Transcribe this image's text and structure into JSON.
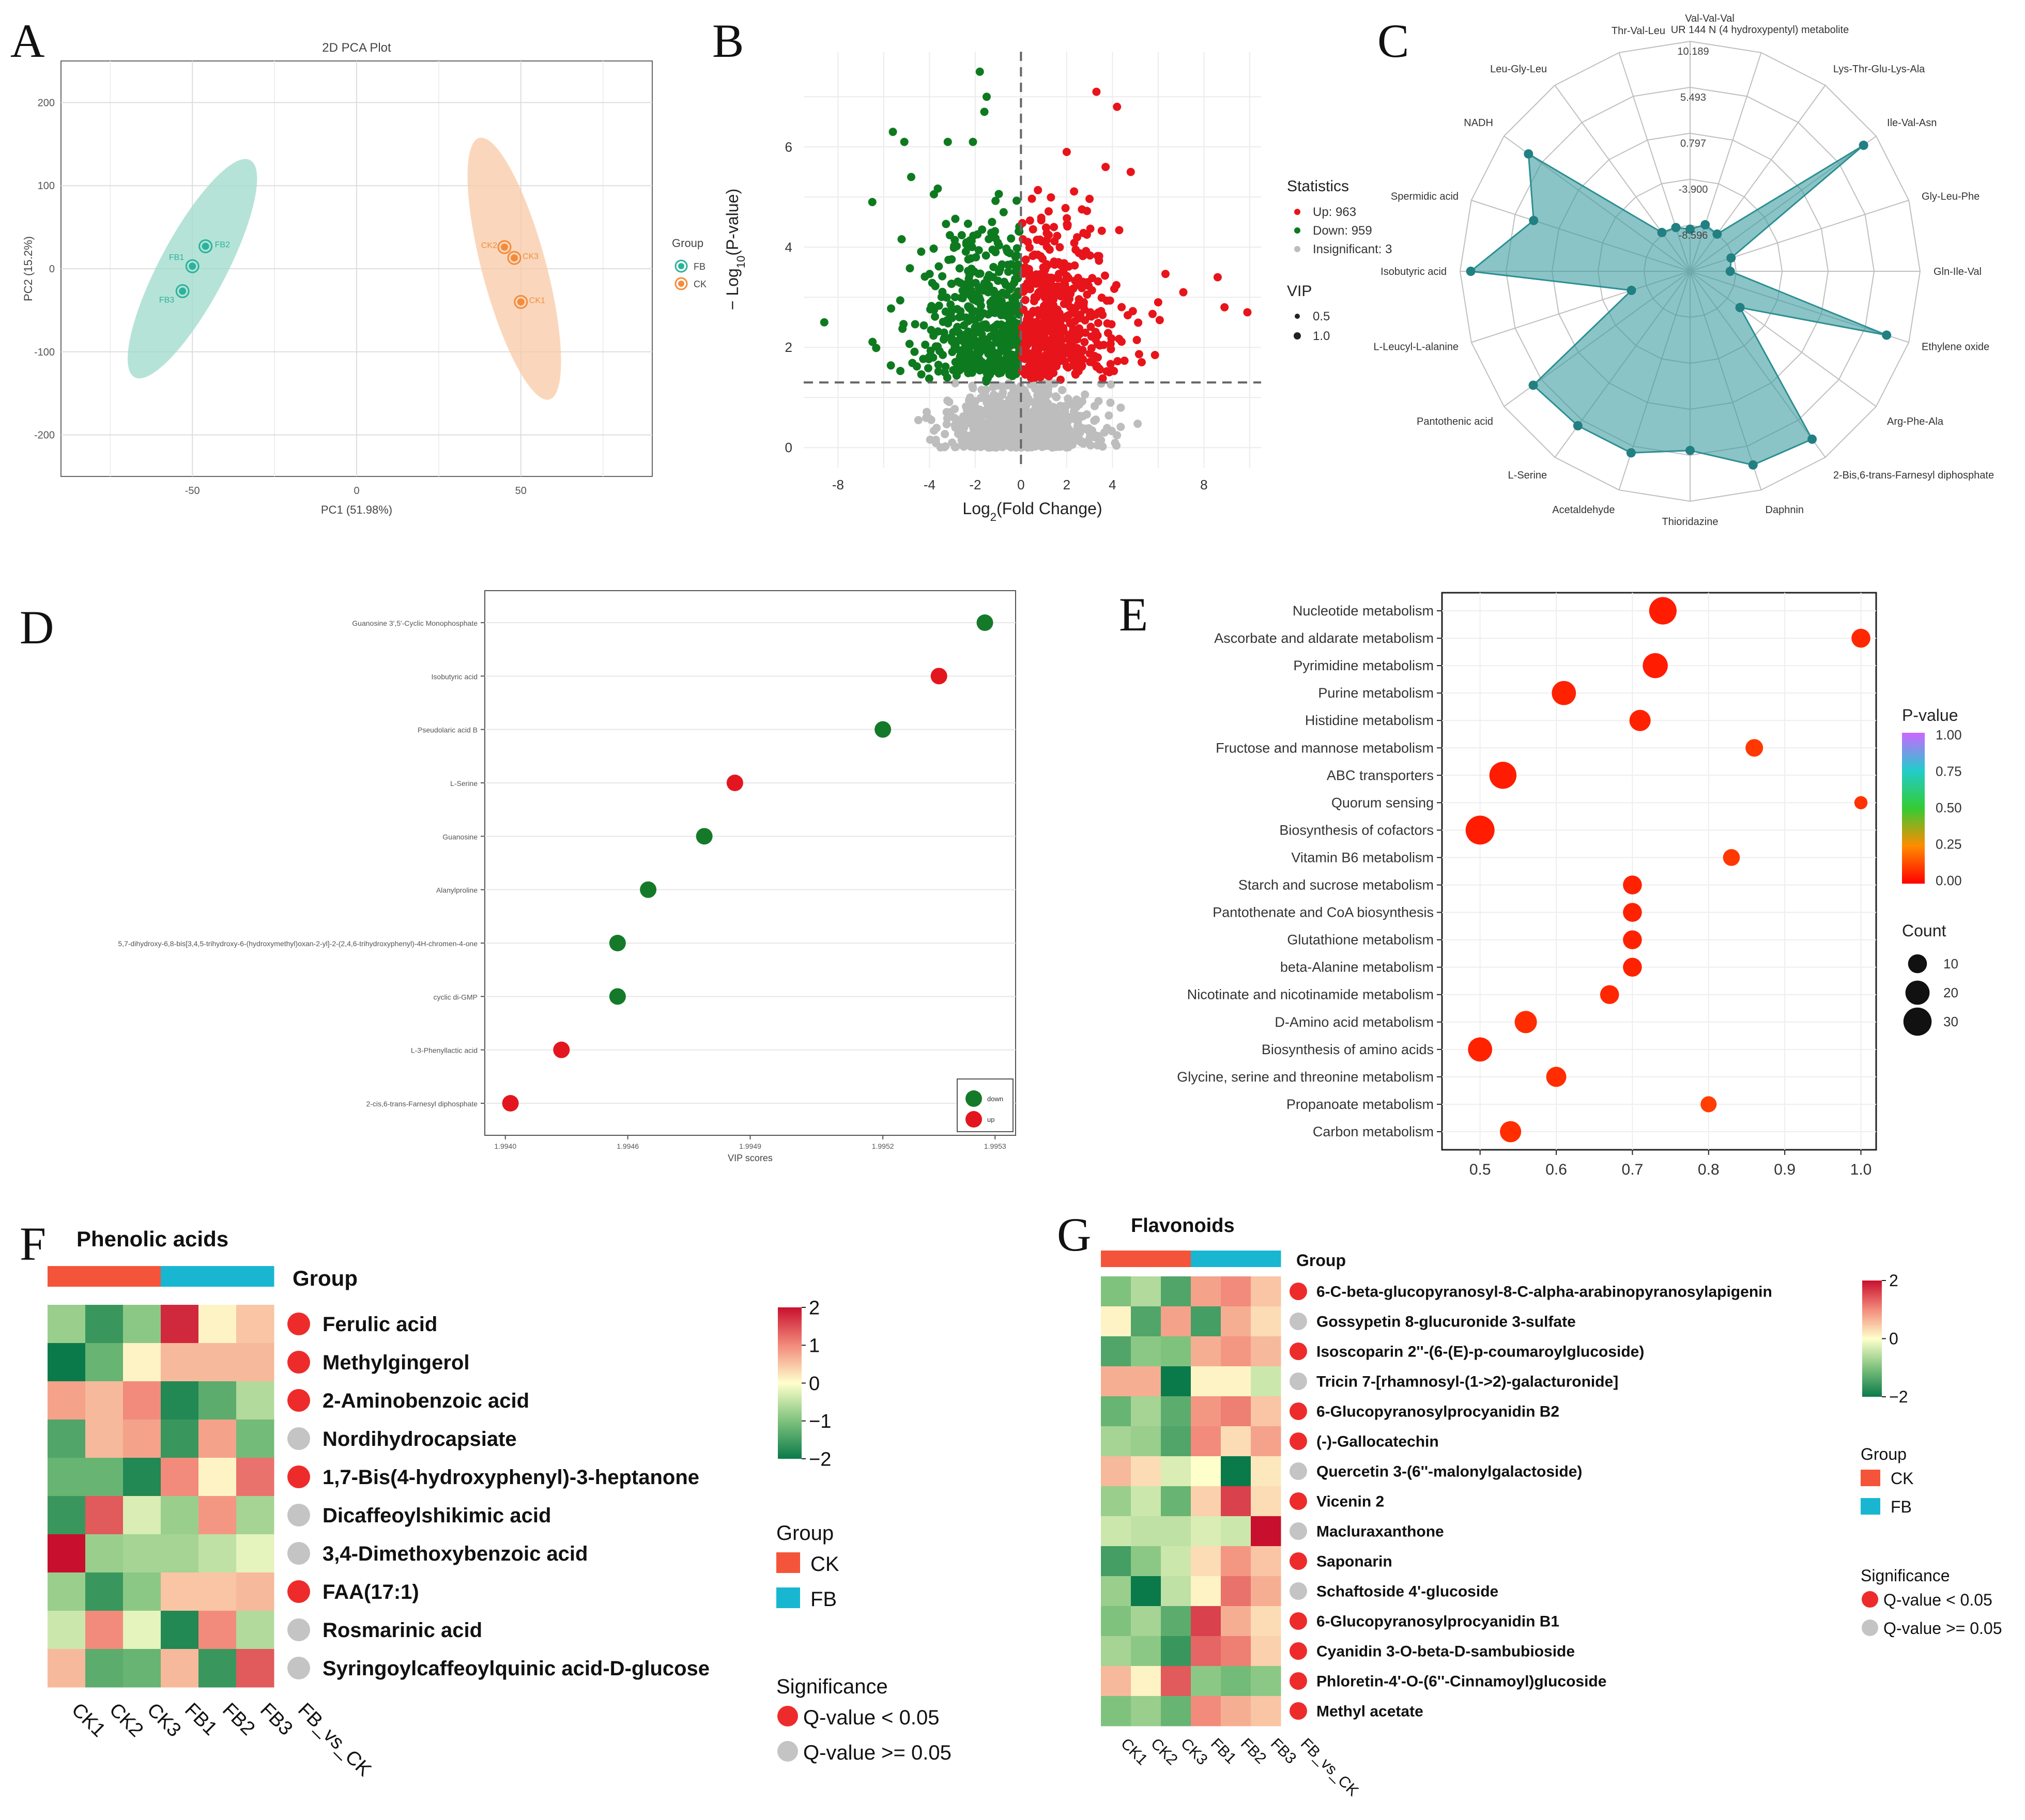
{
  "panel_labels": [
    "A",
    "B",
    "C",
    "D",
    "E",
    "F",
    "G"
  ],
  "chart_data": [
    {
      "id": "A",
      "type": "scatter",
      "title": "2D PCA Plot",
      "xlabel": "PC1 (51.98%)",
      "ylabel": "PC2 (15.2%)",
      "xlim": [
        -90,
        90
      ],
      "ylim": [
        -250,
        250
      ],
      "xticks": [
        "-50",
        "0",
        "50"
      ],
      "yticks": [
        "200",
        "100",
        "0",
        "-100",
        "-200"
      ],
      "legend_title": "Group",
      "legend_position": "right",
      "groups": [
        {
          "name": "FB",
          "color": "#2BB39B",
          "ellipse_color": "#9ED9CB",
          "points": [
            {
              "label": "FB2",
              "x": -46,
              "y": 27
            },
            {
              "label": "FB1",
              "x": -50,
              "y": 3
            },
            {
              "label": "FB3",
              "x": -53,
              "y": -27
            }
          ]
        },
        {
          "name": "CK",
          "color": "#F28C3C",
          "ellipse_color": "#F8C9A6",
          "points": [
            {
              "label": "CK2",
              "x": 45,
              "y": 26
            },
            {
              "label": "CK3",
              "x": 48,
              "y": 13
            },
            {
              "label": "CK1",
              "x": 50,
              "y": -40
            }
          ]
        }
      ]
    },
    {
      "id": "B",
      "type": "scatter",
      "xlabel_main": "Log",
      "xlabel_sub": "2",
      "xlabel_rest": "(Fold Change)",
      "ylabel_main": "− Log",
      "ylabel_sub": "10",
      "ylabel_rest": "(P-value)",
      "xlim": [
        -9.5,
        10.5
      ],
      "ylim": [
        -0.4,
        7.9
      ],
      "xticks": [
        "-8",
        "-4",
        "-2",
        "0",
        "2",
        "4",
        "8"
      ],
      "yticks": [
        "0",
        "2",
        "4",
        "6"
      ],
      "threshold_y": 1.3,
      "legend_title": "Statistics",
      "legend_items": [
        {
          "label": "Up: 963",
          "color": "#E8141B"
        },
        {
          "label": "Down: 959",
          "color": "#0E7A1F"
        },
        {
          "label": "Insignificant: 3",
          "color": "#BDBDBD"
        }
      ],
      "vip_title": "VIP",
      "vip_items": [
        "0.5",
        "1.0"
      ],
      "up_count": 963,
      "down_count": 959
    },
    {
      "id": "C",
      "type": "radar",
      "ring_labels": [
        "10.189",
        "5.493",
        "0.797",
        "-3.900",
        "-8.596"
      ],
      "axes": [
        "Val-Val-Val",
        "UR 144 N (4 hydroxypentyl) metabolite",
        "Lys-Thr-Glu-Lys-Ala",
        "Ile-Val-Asn",
        "Gly-Leu-Phe",
        "Gln-Ile-Val",
        "Ethylene oxide",
        "Arg-Phe-Ala",
        "2-Bis,6-trans-Farnesyl diphosphate",
        "Daphnin",
        "Thioridazine",
        "Acetaldehyde",
        "L-Serine",
        "Pantothenic acid",
        "L-Leucyl-L-alanine",
        "Isobutyric acid",
        "Spermidic acid",
        "NADH",
        "Leu-Gly-Leu",
        "Thr-Val-Leu"
      ],
      "values": [
        -9.0,
        -8.3,
        -8.6,
        8.6,
        -8.9,
        -9.2,
        7.8,
        -7.0,
        7.9,
        7.5,
        5.0,
        6.2,
        6.2,
        6.5,
        -7.0,
        9.1,
        3.5,
        7.1,
        -8.4,
        -8.6
      ],
      "rmin": -13.3,
      "rmax": 10.189,
      "color": "#2C8F92",
      "fill": "#3E9DA0"
    },
    {
      "id": "D",
      "type": "scatter",
      "xlabel": "VIP scores",
      "xticks": [
        "1.9940",
        "1.9946",
        "1.9949",
        "1.9952",
        "1.9953"
      ],
      "categories": [
        "Guanosine 3',5'-Cyclic Monophosphate",
        "Isobutyric acid",
        "Pseudolaric acid B",
        "L-Serine",
        "Guanosine",
        "Alanylproline",
        "5,7-dihydroxy-6,8-bis[3,4,5-trihydroxy-6-(hydroxymethyl)oxan-2-yl]-2-(2,4,6-trihydroxyphenyl)-4H-chromen-4-one",
        "cyclic di-GMP",
        "L-3-Phenyllactic acid",
        "2-cis,6-trans-Farnesyl diphosphate"
      ],
      "values": [
        0.96,
        0.87,
        0.76,
        0.47,
        0.41,
        0.3,
        0.24,
        0.24,
        0.13,
        0.03
      ],
      "directions": [
        "down",
        "up",
        "down",
        "up",
        "down",
        "down",
        "down",
        "down",
        "up",
        "up"
      ],
      "legend_items": [
        {
          "label": "down",
          "color": "#147A2A"
        },
        {
          "label": "up",
          "color": "#E3161F"
        }
      ],
      "legend_position": "bottom-right"
    },
    {
      "id": "E",
      "type": "scatter",
      "xlim": [
        0.45,
        1.02
      ],
      "xticks": [
        0.5,
        0.6,
        0.7,
        0.8,
        0.9,
        1.0
      ],
      "xtick_labels": [
        "0.5",
        "0.6",
        "0.7",
        "0.8",
        "0.9",
        "1.0"
      ],
      "categories": [
        "Nucleotide metabolism",
        "Ascorbate and aldarate metabolism",
        "Pyrimidine metabolism",
        "Purine metabolism",
        "Histidine metabolism",
        "Fructose and mannose metabolism",
        "ABC transporters",
        "Quorum sensing",
        "Biosynthesis of cofactors",
        "Vitamin B6 metabolism",
        "Starch and sucrose metabolism",
        "Pantothenate and CoA biosynthesis",
        "Glutathione metabolism",
        "beta-Alanine metabolism",
        "Nicotinate and nicotinamide metabolism",
        "D-Amino acid metabolism",
        "Biosynthesis of amino acids",
        "Glycine, serine and threonine metabolism",
        "Propanoate metabolism",
        "Carbon metabolism"
      ],
      "x": [
        0.74,
        1.0,
        0.73,
        0.61,
        0.71,
        0.86,
        0.53,
        1.0,
        0.5,
        0.83,
        0.7,
        0.7,
        0.7,
        0.7,
        0.67,
        0.56,
        0.5,
        0.6,
        0.8,
        0.54
      ],
      "count": [
        28,
        10,
        22,
        20,
        14,
        8,
        27,
        3,
        32,
        7,
        10,
        10,
        10,
        10,
        10,
        16,
        20,
        12,
        6,
        14
      ],
      "pvalue": [
        0.05,
        0.07,
        0.05,
        0.06,
        0.06,
        0.1,
        0.05,
        0.09,
        0.05,
        0.1,
        0.06,
        0.06,
        0.06,
        0.06,
        0.07,
        0.08,
        0.06,
        0.08,
        0.11,
        0.08
      ],
      "legend_pvalue_title": "P-value",
      "pvalue_ticks": [
        "1.00",
        "0.75",
        "0.50",
        "0.25",
        "0.00"
      ],
      "legend_count_title": "Count",
      "count_ticks": [
        "10",
        "20",
        "30"
      ]
    },
    {
      "id": "F",
      "type": "heatmap",
      "title": "Phenolic acids",
      "group_label": "Group",
      "columns": [
        "CK1",
        "CK2",
        "CK3",
        "FB1",
        "FB2",
        "FB3",
        "FB_vs_CK"
      ],
      "rows": [
        "Ferulic acid",
        "Methylgingerol",
        "2-Aminobenzoic acid",
        "Nordihydrocapsiate",
        "1,7-Bis(4-hydroxyphenyl)-3-heptanone",
        "Dicaffeoylshikimic acid",
        "3,4-Dimethoxybenzoic acid",
        "FAA(17:1)",
        "Rosmarinic acid",
        "Syringoylcaffeoylquinic acid-D-glucose"
      ],
      "values": [
        [
          -0.8,
          -1.6,
          -0.9,
          1.8,
          0.1,
          0.5
        ],
        [
          -2.0,
          -1.2,
          0.1,
          0.6,
          0.6,
          0.6
        ],
        [
          0.8,
          0.6,
          1.0,
          -1.8,
          -1.3,
          -0.6
        ],
        [
          -1.4,
          0.6,
          0.8,
          -1.6,
          0.8,
          -1.1
        ],
        [
          -1.2,
          -1.2,
          -1.8,
          1.0,
          0.1,
          1.2
        ],
        [
          -1.6,
          1.4,
          -0.3,
          -0.8,
          0.9,
          -0.7
        ],
        [
          2.0,
          -0.8,
          -0.7,
          -0.7,
          -0.5,
          -0.2
        ],
        [
          -0.8,
          -1.6,
          -0.9,
          0.5,
          0.5,
          0.6
        ],
        [
          -0.4,
          1.0,
          -0.2,
          -1.8,
          1.0,
          -0.6
        ],
        [
          0.6,
          -1.3,
          -1.2,
          0.6,
          -1.6,
          1.4
        ]
      ],
      "significant": [
        true,
        true,
        true,
        false,
        true,
        false,
        false,
        true,
        false,
        false
      ],
      "colorbar_ticks": [
        "2",
        "1",
        "0",
        "−1",
        "−2"
      ],
      "group_legend_title": "Group",
      "groups": [
        {
          "name": "CK",
          "color": "#F4553A"
        },
        {
          "name": "FB",
          "color": "#19B6D2"
        }
      ],
      "sig_legend_title": "Significance",
      "sig_items": [
        {
          "label": "Q-value < 0.05",
          "color": "#EE2B2B"
        },
        {
          "label": "Q-value >= 0.05",
          "color": "#C4C4C4"
        }
      ]
    },
    {
      "id": "G",
      "type": "heatmap",
      "title": "Flavonoids",
      "group_label": "Group",
      "columns": [
        "CK1",
        "CK2",
        "CK3",
        "FB1",
        "FB2",
        "FB3",
        "FB_vs_CK"
      ],
      "rows": [
        "6-C-beta-glucopyranosyl-8-C-alpha-arabinopyranosylapigenin",
        "Gossypetin 8-glucuronide 3-sulfate",
        "Isoscoparin 2''-(6-(E)-p-coumaroylglucoside)",
        "Tricin 7-[rhamnosyl-(1->2)-galacturonide]",
        "6-Glucopyranosylprocyanidin B2",
        "(-)-Gallocatechin",
        "Quercetin 3-(6''-malonylgalactoside)",
        "Vicenin 2",
        "Macluraxanthone",
        "Saponarin",
        "Schaftoside 4'-glucoside",
        "6-Glucopyranosylprocyanidin B1",
        "Cyanidin 3-O-beta-D-sambubioside",
        "Phloretin-4'-O-(6''-Cinnamoyl)glucoside",
        "Methyl acetate"
      ],
      "values": [
        [
          -1.0,
          -0.6,
          -1.4,
          0.8,
          1.0,
          0.5
        ],
        [
          0.1,
          -1.4,
          0.8,
          -1.5,
          0.7,
          0.3
        ],
        [
          -1.4,
          -0.9,
          -1.0,
          0.7,
          0.9,
          0.6
        ],
        [
          0.7,
          0.7,
          -2.0,
          0.1,
          0.1,
          -0.4
        ],
        [
          -1.2,
          -0.7,
          -1.3,
          0.9,
          1.1,
          0.5
        ],
        [
          -0.7,
          -0.8,
          -1.4,
          1.0,
          0.3,
          0.8
        ],
        [
          0.6,
          0.3,
          -0.3,
          0.0,
          -2.0,
          0.2
        ],
        [
          -0.8,
          -0.4,
          -1.2,
          0.4,
          1.6,
          0.3
        ],
        [
          -0.4,
          -0.5,
          -0.5,
          -0.3,
          -0.4,
          2.2
        ],
        [
          -1.5,
          -0.9,
          -0.4,
          0.3,
          0.9,
          0.5
        ],
        [
          -0.8,
          -2.0,
          -0.5,
          0.1,
          1.2,
          0.7
        ],
        [
          -1.0,
          -0.7,
          -1.3,
          1.6,
          0.7,
          0.3
        ],
        [
          -0.7,
          -0.9,
          -1.6,
          1.3,
          1.1,
          0.4
        ],
        [
          0.6,
          0.1,
          1.4,
          -0.9,
          -1.1,
          -0.9
        ],
        [
          -1.0,
          -0.8,
          -1.2,
          1.0,
          0.7,
          0.5
        ]
      ],
      "significant": [
        true,
        false,
        true,
        false,
        true,
        true,
        false,
        true,
        false,
        true,
        false,
        true,
        true,
        true,
        true
      ],
      "colorbar_ticks": [
        "2",
        "0",
        "−2"
      ],
      "group_legend_title": "Group",
      "groups": [
        {
          "name": "CK",
          "color": "#F4553A"
        },
        {
          "name": "FB",
          "color": "#19B6D2"
        }
      ],
      "sig_legend_title": "Significance",
      "sig_items": [
        {
          "label": "Q-value < 0.05",
          "color": "#EE2B2B"
        },
        {
          "label": "Q-value >= 0.05",
          "color": "#C4C4C4"
        }
      ]
    }
  ]
}
